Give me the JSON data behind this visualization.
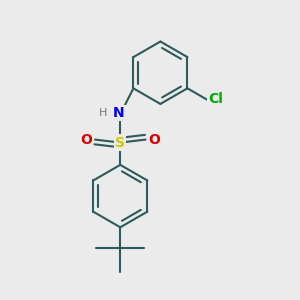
{
  "bg_color": "#ebebeb",
  "bond_color": "#2d5a5a",
  "bond_width": 1.5,
  "S_color": "#cccc00",
  "O_color": "#dd0000",
  "N_color": "#0000ee",
  "Cl_color": "#00aa00",
  "H_color": "#777777",
  "figsize": [
    3.0,
    3.0
  ],
  "dpi": 100,
  "xlim": [
    0.0,
    1.0
  ],
  "ylim": [
    0.0,
    1.0
  ]
}
